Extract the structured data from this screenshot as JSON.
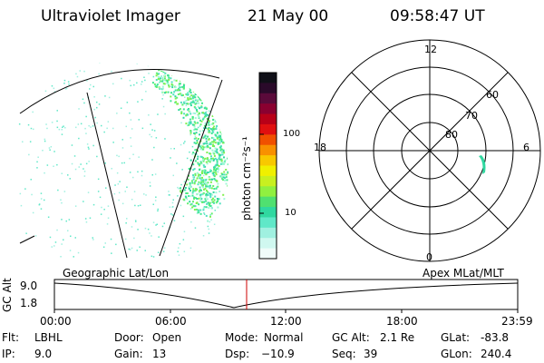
{
  "header": {
    "instrument": "Ultraviolet Imager",
    "date": "21 May 00",
    "time": "09:58:47 UT"
  },
  "colorbar": {
    "unit_label": "photon cm⁻²s⁻¹",
    "ticks": [
      "100",
      "10"
    ],
    "colors": [
      "#101018",
      "#2a0a2a",
      "#5a0a3a",
      "#8a0030",
      "#b80018",
      "#e01010",
      "#f05000",
      "#f89000",
      "#f8c800",
      "#f0f000",
      "#c8f020",
      "#90f040",
      "#50e070",
      "#30d8a0",
      "#60e8c8",
      "#a0f0e0",
      "#d0f8f0",
      "#f0fcfa"
    ]
  },
  "polar_plot": {
    "mlt_labels": {
      "top": "12",
      "left": "18",
      "right": "6",
      "bottom": "0"
    },
    "lat_labels": [
      "60",
      "70",
      "80"
    ]
  },
  "timeline": {
    "y_axis_title": "GC Alt",
    "y_ticks": [
      "9.0",
      "1.8"
    ],
    "left_label": "Geographic Lat/Lon",
    "right_label": "Apex MLat/MLT",
    "x_ticks": [
      "00:00",
      "06:00",
      "12:00",
      "18:00",
      "23:59"
    ],
    "marker_color": "#cc0000"
  },
  "info": [
    {
      "row": [
        {
          "k": "Flt:",
          "v": "LBHL"
        },
        {
          "k": "Door:",
          "v": "Open"
        },
        {
          "k": "Mode:",
          "v": "Normal"
        },
        {
          "k": "GC Alt:",
          "v": "2.1 Re"
        },
        {
          "k": "GLat:",
          "v": "-83.8"
        }
      ]
    },
    {
      "row": [
        {
          "k": "IP:",
          "v": "9.0"
        },
        {
          "k": "Gain:",
          "v": "13"
        },
        {
          "k": "Dsp:",
          "v": "−10.9"
        },
        {
          "k": "Seq:",
          "v": "39"
        },
        {
          "k": "GLon:",
          "v": "240.4"
        }
      ]
    }
  ]
}
